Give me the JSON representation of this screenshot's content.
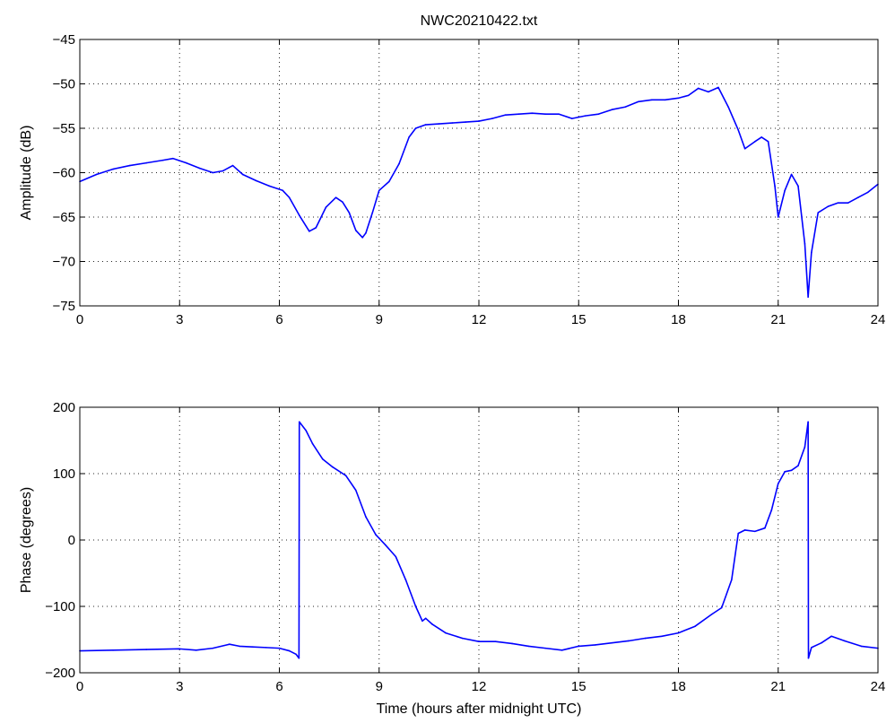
{
  "chart_data": [
    {
      "type": "line",
      "title": "NWC20210422.txt",
      "xlabel": "",
      "ylabel": "Amplitude (dB)",
      "xlim": [
        0,
        24
      ],
      "ylim": [
        -75,
        -45
      ],
      "xticks": [
        0,
        3,
        6,
        9,
        12,
        15,
        18,
        21,
        24
      ],
      "yticks": [
        -75,
        -70,
        -65,
        -60,
        -55,
        -50,
        -45
      ],
      "grid": true,
      "line_color": "#0000ff",
      "series": [
        {
          "x": [
            0,
            0.5,
            1,
            1.5,
            2,
            2.5,
            2.8,
            3.2,
            3.6,
            4.0,
            4.3,
            4.6,
            4.9,
            5.3,
            5.7,
            6.1,
            6.3,
            6.6,
            6.9,
            7.1,
            7.4,
            7.7,
            7.9,
            8.1,
            8.3,
            8.5,
            8.6,
            8.8,
            9.0,
            9.3,
            9.6,
            9.9,
            10.1,
            10.4,
            10.8,
            11.2,
            11.6,
            12.0,
            12.4,
            12.8,
            13.2,
            13.6,
            14.0,
            14.4,
            14.8,
            15.2,
            15.6,
            16.0,
            16.4,
            16.8,
            17.2,
            17.6,
            18.0,
            18.3,
            18.6,
            18.9,
            19.2,
            19.5,
            19.8,
            20.0,
            20.3,
            20.5,
            20.7,
            20.9,
            21.0,
            21.2,
            21.4,
            21.6,
            21.8,
            21.9,
            22.0,
            22.2,
            22.5,
            22.8,
            23.1,
            23.4,
            23.7,
            24.0
          ],
          "y": [
            -61,
            -60.2,
            -59.6,
            -59.2,
            -58.9,
            -58.6,
            -58.4,
            -58.9,
            -59.5,
            -60.0,
            -59.8,
            -59.2,
            -60.2,
            -60.9,
            -61.5,
            -62.0,
            -62.8,
            -64.8,
            -66.6,
            -66.2,
            -63.9,
            -62.8,
            -63.3,
            -64.5,
            -66.5,
            -67.3,
            -66.8,
            -64.5,
            -62.0,
            -61.0,
            -59.0,
            -56.0,
            -55.0,
            -54.6,
            -54.5,
            -54.4,
            -54.3,
            -54.2,
            -53.9,
            -53.5,
            -53.4,
            -53.3,
            -53.4,
            -53.4,
            -53.9,
            -53.6,
            -53.4,
            -52.9,
            -52.6,
            -52.0,
            -51.8,
            -51.8,
            -51.6,
            -51.3,
            -50.5,
            -50.9,
            -50.4,
            -52.6,
            -55.2,
            -57.3,
            -56.5,
            -56.0,
            -56.5,
            -61.5,
            -65.0,
            -62.0,
            -60.2,
            -61.5,
            -68.0,
            -74.0,
            -69.0,
            -64.5,
            -63.8,
            -63.4,
            -63.4,
            -62.8,
            -62.2,
            -61.3
          ]
        }
      ]
    },
    {
      "type": "line",
      "title": "",
      "xlabel": "Time (hours after midnight UTC)",
      "ylabel": "Phase (degrees)",
      "xlim": [
        0,
        24
      ],
      "ylim": [
        -200,
        200
      ],
      "xticks": [
        0,
        3,
        6,
        9,
        12,
        15,
        18,
        21,
        24
      ],
      "yticks": [
        -200,
        -100,
        0,
        100,
        200
      ],
      "grid": true,
      "line_color": "#0000ff",
      "series": [
        {
          "x": [
            0,
            1,
            2,
            3,
            3.5,
            4.0,
            4.5,
            4.8,
            5.2,
            5.6,
            6.0,
            6.3,
            6.5,
            6.59,
            6.6,
            6.8,
            7.0,
            7.3,
            7.6,
            8.0,
            8.3,
            8.6,
            8.9,
            9.2,
            9.5,
            9.8,
            10.1,
            10.3,
            10.4,
            10.6,
            11.0,
            11.5,
            12.0,
            12.5,
            13.0,
            13.5,
            14.0,
            14.5,
            15.0,
            15.5,
            16.0,
            16.5,
            17.0,
            17.5,
            18.0,
            18.5,
            19.0,
            19.3,
            19.6,
            19.8,
            20.0,
            20.3,
            20.6,
            20.8,
            21.0,
            21.2,
            21.4,
            21.6,
            21.8,
            21.9,
            21.91,
            22.0,
            22.3,
            22.6,
            23.0,
            23.5,
            24.0
          ],
          "y": [
            -167,
            -166,
            -165,
            -164,
            -166,
            -163,
            -157,
            -160,
            -161,
            -162,
            -163,
            -167,
            -172,
            -178,
            178,
            165,
            145,
            122,
            110,
            97,
            75,
            35,
            8,
            -8,
            -25,
            -60,
            -100,
            -122,
            -118,
            -127,
            -140,
            -148,
            -153,
            -153,
            -156,
            -160,
            -163,
            -166,
            -160,
            -158,
            -155,
            -152,
            -148,
            -145,
            -140,
            -130,
            -112,
            -102,
            -60,
            10,
            15,
            13,
            18,
            45,
            85,
            103,
            105,
            112,
            140,
            178,
            -178,
            -162,
            -155,
            -145,
            -152,
            -160,
            -163
          ]
        }
      ]
    }
  ]
}
